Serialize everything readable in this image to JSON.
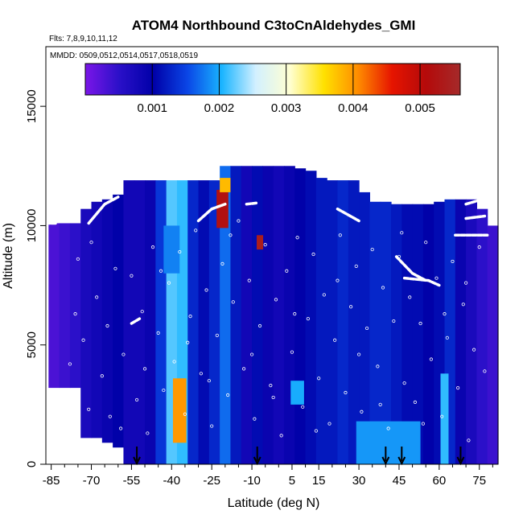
{
  "chart_data": {
    "type": "heatmap",
    "title": "ATOM4 Northbound C3toCnAldehydes_GMI",
    "flights_label": "Flts: 7,8,9,10,11,12",
    "dates_label": "MMDD: 0509,0512,0514,0517,0518,0519",
    "xlabel": "Latitude (deg N)",
    "ylabel": "Altitude (m)",
    "xlim": [
      -87,
      82
    ],
    "ylim": [
      0,
      17500
    ],
    "x_ticks": [
      -85,
      -70,
      -55,
      -40,
      -25,
      -10,
      5,
      15,
      30,
      45,
      60,
      75
    ],
    "x_tick_labels": [
      "-85",
      "-70",
      "-55",
      "-40",
      "-25",
      "-10",
      "5",
      "15",
      "30",
      "45",
      "60",
      "75"
    ],
    "y_ticks": [
      0,
      5000,
      10000,
      15000
    ],
    "y_tick_labels": [
      "0",
      "5000",
      "10000",
      "15000"
    ],
    "colorbar": {
      "min": 0.0,
      "max": 0.0056,
      "ticks": [
        0.001,
        0.002,
        0.003,
        0.004,
        0.005
      ],
      "tick_labels": [
        "0.001",
        "0.002",
        "0.003",
        "0.004",
        "0.005"
      ],
      "colors": [
        "#7b16e8",
        "#2a10c8",
        "#0000a8",
        "#0a46e6",
        "#19b4ff",
        "#d2f0ff",
        "#ffffd2",
        "#ffe100",
        "#ff8c00",
        "#e61400",
        "#b40a0a",
        "#a52a2a"
      ]
    },
    "profiles": [
      {
        "lat": -84,
        "top": 10100,
        "bottom": 3200,
        "value": 0.0003
      },
      {
        "lat": -80,
        "top": 10100,
        "bottom": 3200,
        "value": 0.0004
      },
      {
        "lat": -76,
        "top": 10100,
        "bottom": 3200,
        "value": 0.0005
      },
      {
        "lat": -72,
        "top": 10700,
        "bottom": 1100,
        "value": 0.0007
      },
      {
        "lat": -68,
        "top": 11000,
        "bottom": 1100,
        "value": 0.0008
      },
      {
        "lat": -64,
        "top": 11100,
        "bottom": 900,
        "value": 0.0009
      },
      {
        "lat": -60,
        "top": 11300,
        "bottom": 700,
        "value": 0.001
      },
      {
        "lat": -56,
        "top": 11900,
        "bottom": 0,
        "value": 0.0008
      },
      {
        "lat": -52,
        "top": 11900,
        "bottom": 0,
        "value": 0.0008
      },
      {
        "lat": -48,
        "top": 11900,
        "bottom": 0,
        "value": 0.0009
      },
      {
        "lat": -44,
        "top": 11900,
        "bottom": 0,
        "value": 0.0014
      },
      {
        "lat": -40,
        "top": 11900,
        "bottom": 0,
        "value": 0.0022
      },
      {
        "lat": -36,
        "top": 11900,
        "bottom": 0,
        "value": 0.0021
      },
      {
        "lat": -32,
        "top": 11900,
        "bottom": 0,
        "value": 0.0013
      },
      {
        "lat": -28,
        "top": 11900,
        "bottom": 0,
        "value": 0.0011
      },
      {
        "lat": -24,
        "top": 11900,
        "bottom": 0,
        "value": 0.0013
      },
      {
        "lat": -20,
        "top": 12500,
        "bottom": 0,
        "value": 0.0017
      },
      {
        "lat": -16,
        "top": 12500,
        "bottom": 0,
        "value": 0.0012
      },
      {
        "lat": -12,
        "top": 12500,
        "bottom": 0,
        "value": 0.0008
      },
      {
        "lat": -8,
        "top": 12500,
        "bottom": 0,
        "value": 0.0011
      },
      {
        "lat": -4,
        "top": 12500,
        "bottom": 0,
        "value": 0.0009
      },
      {
        "lat": 0,
        "top": 12500,
        "bottom": 0,
        "value": 0.0008
      },
      {
        "lat": 4,
        "top": 12500,
        "bottom": 0,
        "value": 0.0009
      },
      {
        "lat": 8,
        "top": 12400,
        "bottom": 0,
        "value": 0.001
      },
      {
        "lat": 12,
        "top": 12300,
        "bottom": 0,
        "value": 0.0011
      },
      {
        "lat": 16,
        "top": 12000,
        "bottom": 0,
        "value": 0.0012
      },
      {
        "lat": 20,
        "top": 11900,
        "bottom": 0,
        "value": 0.0012
      },
      {
        "lat": 24,
        "top": 11900,
        "bottom": 0,
        "value": 0.0013
      },
      {
        "lat": 28,
        "top": 11900,
        "bottom": 0,
        "value": 0.0012
      },
      {
        "lat": 32,
        "top": 11400,
        "bottom": 0,
        "value": 0.0012
      },
      {
        "lat": 36,
        "top": 11000,
        "bottom": 0,
        "value": 0.0013
      },
      {
        "lat": 40,
        "top": 11000,
        "bottom": 0,
        "value": 0.0013
      },
      {
        "lat": 44,
        "top": 10900,
        "bottom": 0,
        "value": 0.0012
      },
      {
        "lat": 48,
        "top": 10900,
        "bottom": 0,
        "value": 0.0011
      },
      {
        "lat": 52,
        "top": 10900,
        "bottom": 0,
        "value": 0.0011
      },
      {
        "lat": 56,
        "top": 10900,
        "bottom": 0,
        "value": 0.001
      },
      {
        "lat": 60,
        "top": 11000,
        "bottom": 0,
        "value": 0.0011
      },
      {
        "lat": 64,
        "top": 11100,
        "bottom": 0,
        "value": 0.0013
      },
      {
        "lat": 68,
        "top": 11100,
        "bottom": 0,
        "value": 0.0009
      },
      {
        "lat": 72,
        "top": 11100,
        "bottom": 0,
        "value": 0.0007
      },
      {
        "lat": 76,
        "top": 10700,
        "bottom": 0,
        "value": 0.0005
      },
      {
        "lat": 80,
        "top": 10000,
        "bottom": 0,
        "value": 0.0004
      }
    ],
    "features": [
      {
        "lat": -37,
        "half_width": 2.5,
        "top": 3600,
        "bottom": 900,
        "value": 0.004
      },
      {
        "lat": -21,
        "half_width": 2.2,
        "top": 11500,
        "bottom": 9900,
        "value": 0.0052
      },
      {
        "lat": -20,
        "half_width": 2.0,
        "top": 12000,
        "bottom": 11400,
        "value": 0.0038
      },
      {
        "lat": -7,
        "half_width": 1.2,
        "top": 9600,
        "bottom": 9000,
        "value": 0.0054
      },
      {
        "lat": 41,
        "half_width": 12,
        "top": 1800,
        "bottom": 0,
        "value": 0.0019
      },
      {
        "lat": 7,
        "half_width": 2.5,
        "top": 3500,
        "bottom": 2500,
        "value": 0.002
      },
      {
        "lat": 62,
        "half_width": 1.5,
        "top": 3800,
        "bottom": 0,
        "value": 0.0021
      },
      {
        "lat": -40,
        "half_width": 3,
        "top": 10000,
        "bottom": 8000,
        "value": 0.0018
      }
    ],
    "flight_tracks": [
      {
        "points": [
          [
            -87,
            10100
          ],
          [
            -83,
            10100
          ]
        ]
      },
      {
        "points": [
          [
            -71,
            10100
          ],
          [
            -65,
            10900
          ],
          [
            -60,
            11200
          ]
        ]
      },
      {
        "points": [
          [
            -55,
            5900
          ],
          [
            -52,
            6100
          ]
        ]
      },
      {
        "points": [
          [
            -30,
            10200
          ],
          [
            -25,
            10700
          ],
          [
            -20,
            10900
          ]
        ]
      },
      {
        "points": [
          [
            -12,
            10900
          ],
          [
            -8,
            10950
          ]
        ]
      },
      {
        "points": [
          [
            22,
            10700
          ],
          [
            30,
            10200
          ]
        ]
      },
      {
        "points": [
          [
            44,
            8700
          ],
          [
            50,
            8000
          ],
          [
            55,
            7700
          ]
        ]
      },
      {
        "points": [
          [
            47,
            7800
          ],
          [
            56,
            7700
          ],
          [
            60,
            7500
          ]
        ]
      },
      {
        "points": [
          [
            70,
            10900
          ],
          [
            76,
            11100
          ]
        ]
      },
      {
        "points": [
          [
            70,
            10300
          ],
          [
            77,
            10400
          ]
        ]
      },
      {
        "points": [
          [
            66,
            9600
          ],
          [
            78,
            9600
          ]
        ]
      }
    ],
    "markers": [
      -53,
      -8,
      40,
      46,
      68
    ],
    "samples": [
      [
        -78,
        4200
      ],
      [
        -75,
        8600
      ],
      [
        -73,
        5200
      ],
      [
        -70,
        9300
      ],
      [
        -68,
        7000
      ],
      [
        -66,
        3700
      ],
      [
        -63,
        2000
      ],
      [
        -61,
        8200
      ],
      [
        -58,
        4600
      ],
      [
        -55,
        7900
      ],
      [
        -53,
        2700
      ],
      [
        -51,
        6400
      ],
      [
        -49,
        1300
      ],
      [
        -47,
        9100
      ],
      [
        -45,
        5500
      ],
      [
        -43,
        3100
      ],
      [
        -41,
        7600
      ],
      [
        -39,
        4300
      ],
      [
        -37,
        8900
      ],
      [
        -35,
        2100
      ],
      [
        -33,
        6200
      ],
      [
        -31,
        9800
      ],
      [
        -29,
        3800
      ],
      [
        -27,
        7300
      ],
      [
        -25,
        1600
      ],
      [
        -23,
        5400
      ],
      [
        -21,
        8400
      ],
      [
        -19,
        2900
      ],
      [
        -17,
        6800
      ],
      [
        -15,
        10200
      ],
      [
        -13,
        4000
      ],
      [
        -11,
        7700
      ],
      [
        -9,
        1900
      ],
      [
        -7,
        5800
      ],
      [
        -5,
        9200
      ],
      [
        -3,
        3300
      ],
      [
        -1,
        6900
      ],
      [
        1,
        1200
      ],
      [
        3,
        8100
      ],
      [
        5,
        4700
      ],
      [
        7,
        9500
      ],
      [
        9,
        2400
      ],
      [
        11,
        6100
      ],
      [
        13,
        8800
      ],
      [
        15,
        3600
      ],
      [
        17,
        7100
      ],
      [
        19,
        1700
      ],
      [
        21,
        5200
      ],
      [
        23,
        9600
      ],
      [
        25,
        3000
      ],
      [
        27,
        6600
      ],
      [
        29,
        8300
      ],
      [
        31,
        2200
      ],
      [
        33,
        5700
      ],
      [
        35,
        9000
      ],
      [
        37,
        4100
      ],
      [
        39,
        7400
      ],
      [
        41,
        1500
      ],
      [
        43,
        6000
      ],
      [
        45,
        8700
      ],
      [
        47,
        3400
      ],
      [
        49,
        7000
      ],
      [
        51,
        2600
      ],
      [
        53,
        5900
      ],
      [
        55,
        9300
      ],
      [
        57,
        4400
      ],
      [
        59,
        7800
      ],
      [
        61,
        2000
      ],
      [
        63,
        5300
      ],
      [
        65,
        8500
      ],
      [
        67,
        3200
      ],
      [
        69,
        6700
      ],
      [
        71,
        1000
      ],
      [
        73,
        4800
      ],
      [
        75,
        9100
      ],
      [
        77,
        3900
      ],
      [
        -76,
        6300
      ],
      [
        -71,
        2300
      ],
      [
        -64,
        5800
      ],
      [
        -59,
        1500
      ],
      [
        -50,
        4000
      ],
      [
        -44,
        8100
      ],
      [
        -34,
        5100
      ],
      [
        -26,
        3500
      ],
      [
        -18,
        9600
      ],
      [
        -10,
        4600
      ],
      [
        -2,
        2800
      ],
      [
        6,
        6300
      ],
      [
        14,
        1400
      ],
      [
        22,
        7700
      ],
      [
        30,
        4600
      ],
      [
        38,
        2500
      ],
      [
        46,
        9700
      ],
      [
        54,
        1700
      ],
      [
        62,
        6300
      ],
      [
        70,
        7600
      ]
    ]
  }
}
